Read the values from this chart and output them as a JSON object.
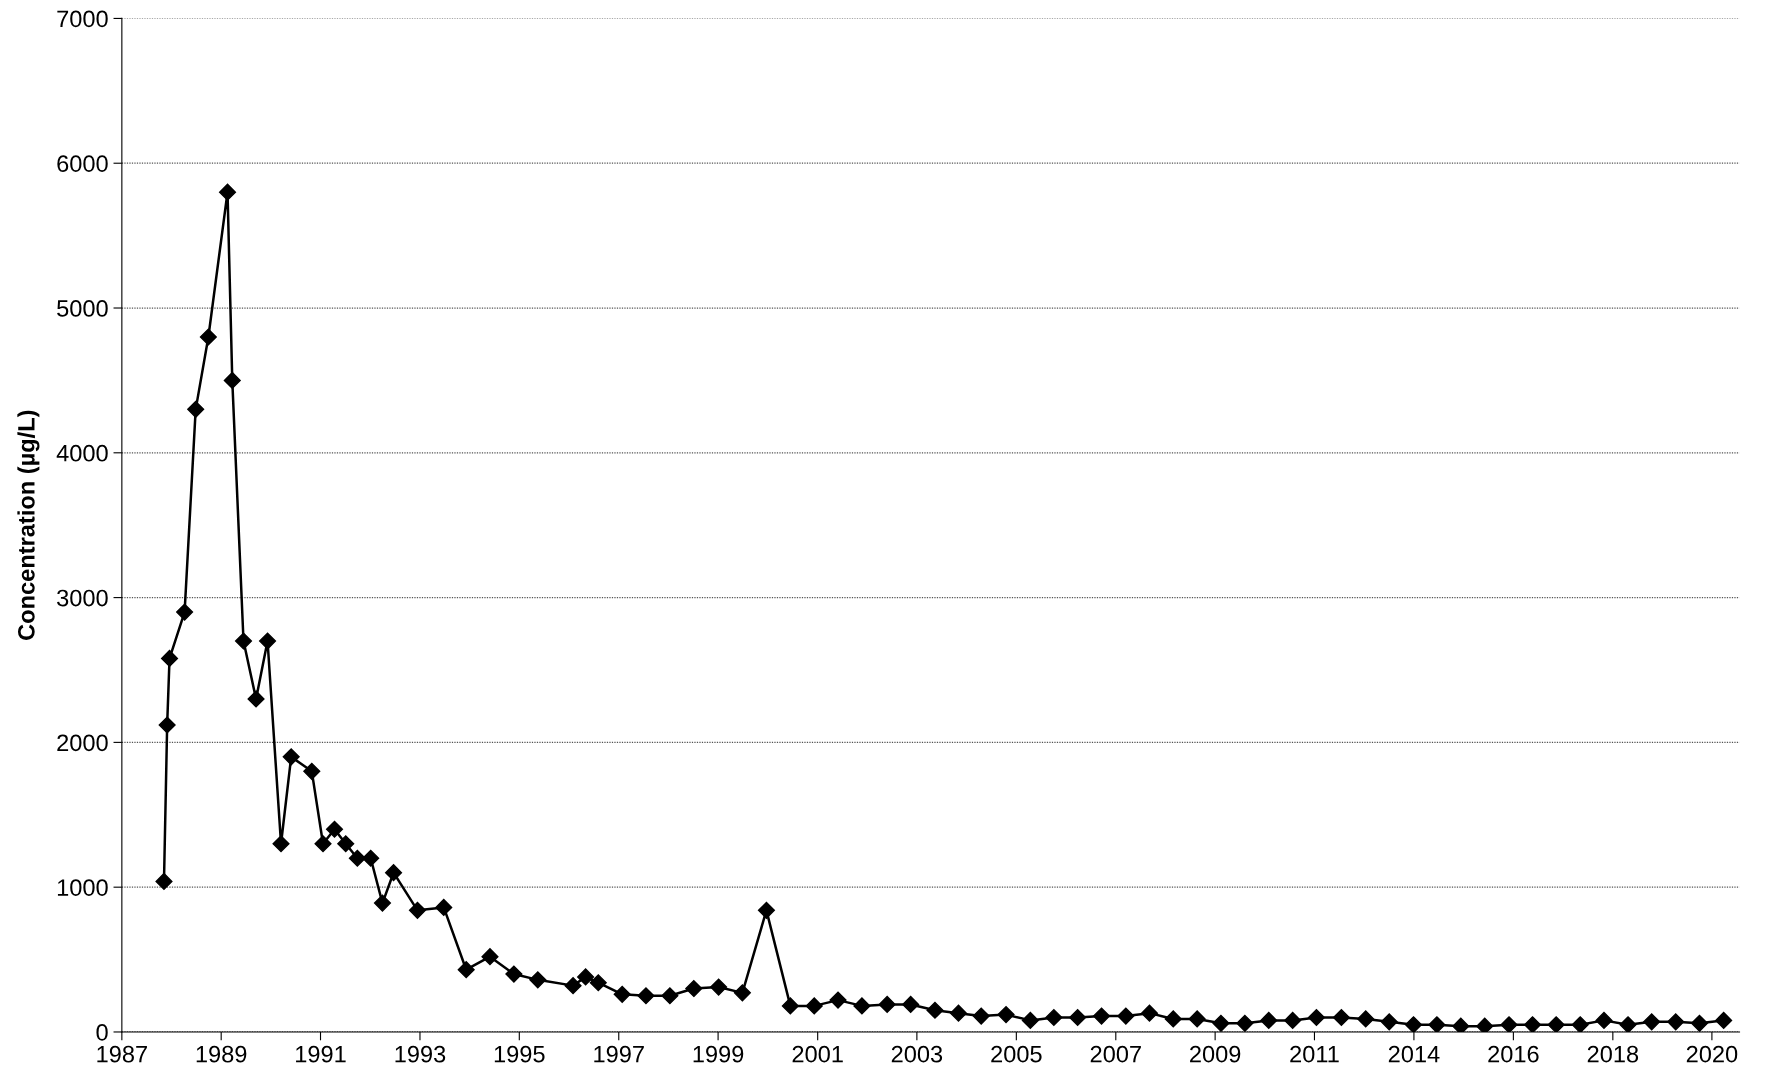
{
  "chart_data": {
    "type": "line",
    "ylabel": "Concentration (µg/L)",
    "x": [
      "1988-02-14",
      "1988-03-09",
      "1988-03-27",
      "1988-07-19",
      "1988-10-11",
      "1989-01-15",
      "1989-06-09",
      "1989-07-15",
      "1989-10-08",
      "1990-01-11",
      "1990-04-08",
      "1990-07-19",
      "1990-10-04",
      "1991-03-09",
      "1991-06-02",
      "1991-08-28",
      "1991-11-21",
      "1992-02-17",
      "1992-05-28",
      "1992-08-25",
      "1992-11-17",
      "1993-05-17",
      "1993-12-02",
      "1994-05-21",
      "1994-11-17",
      "1995-05-17",
      "1995-11-14",
      "1996-08-07",
      "1996-11-10",
      "1997-02-14",
      "1997-08-14",
      "1998-02-10",
      "1998-08-10",
      "1999-02-07",
      "1999-08-14",
      "2000-02-10",
      "2000-08-10",
      "2001-02-07",
      "2001-08-07",
      "2002-02-03",
      "2002-08-03",
      "2003-02-10",
      "2003-08-07",
      "2004-02-07",
      "2004-08-03",
      "2005-01-22",
      "2005-07-29",
      "2006-01-29",
      "2006-07-26",
      "2007-01-22",
      "2007-07-22",
      "2008-01-22",
      "2008-07-19",
      "2009-01-15",
      "2009-07-15",
      "2010-01-11",
      "2010-07-11",
      "2011-01-08",
      "2011-07-08",
      "2012-01-04",
      "2012-07-11",
      "2013-01-11",
      "2013-07-08",
      "2014-01-08",
      "2014-07-04",
      "2015-01-01",
      "2015-07-01",
      "2016-01-01",
      "2016-06-27",
      "2016-12-23",
      "2017-06-23",
      "2017-12-20",
      "2018-06-20",
      "2018-12-16",
      "2019-06-16",
      "2019-12-13",
      "2020-06-13"
    ],
    "series": [
      {
        "color": "#000000",
        "values": [
          1040,
          2120,
          2580,
          2900,
          4300,
          4800,
          5800,
          4500,
          2700,
          2300,
          2700,
          1300,
          1900,
          1800,
          1300,
          1400,
          1300,
          1200,
          1200,
          890,
          1100,
          840,
          860,
          430,
          520,
          400,
          360,
          320,
          380,
          340,
          260,
          250,
          250,
          300,
          310,
          270,
          840,
          180,
          180,
          220,
          180,
          190,
          190,
          150,
          130,
          110,
          120,
          80,
          100,
          100,
          110,
          110,
          130,
          90,
          90,
          60,
          60,
          80,
          80,
          100,
          100,
          90,
          70,
          50,
          50,
          40,
          40,
          50,
          50,
          50,
          50,
          80,
          50,
          70,
          70,
          60,
          80
        ]
      }
    ],
    "xlim": [
      "1987-04-01",
      "2020-10-11"
    ],
    "xticks": [
      {
        "value": "1987-04-01",
        "label": "1987"
      },
      {
        "value": "1989-04-22",
        "label": "1989"
      },
      {
        "value": "1991-05-14",
        "label": "1991"
      },
      {
        "value": "1993-06-05",
        "label": "1993"
      },
      {
        "value": "1995-06-27",
        "label": "1995"
      },
      {
        "value": "1997-07-19",
        "label": "1997"
      },
      {
        "value": "1999-08-10",
        "label": "1999"
      },
      {
        "value": "2001-09-02",
        "label": "2001"
      },
      {
        "value": "2003-09-23",
        "label": "2003"
      },
      {
        "value": "2005-10-15",
        "label": "2005"
      },
      {
        "value": "2007-11-07",
        "label": "2007"
      },
      {
        "value": "2009-11-28",
        "label": "2009"
      },
      {
        "value": "2011-12-20",
        "label": "2011"
      },
      {
        "value": "2014-01-11",
        "label": "2014"
      },
      {
        "value": "2016-02-03",
        "label": "2016"
      },
      {
        "value": "2018-02-25",
        "label": "2018"
      },
      {
        "value": "2020-03-16",
        "label": "2020"
      }
    ],
    "ylim": [
      0,
      7000
    ],
    "yticks": [
      0,
      1000,
      2000,
      3000,
      4000,
      5000,
      6000,
      7000
    ],
    "grid": "y",
    "marker": "diamond",
    "line_style": "solid",
    "legend": false
  }
}
